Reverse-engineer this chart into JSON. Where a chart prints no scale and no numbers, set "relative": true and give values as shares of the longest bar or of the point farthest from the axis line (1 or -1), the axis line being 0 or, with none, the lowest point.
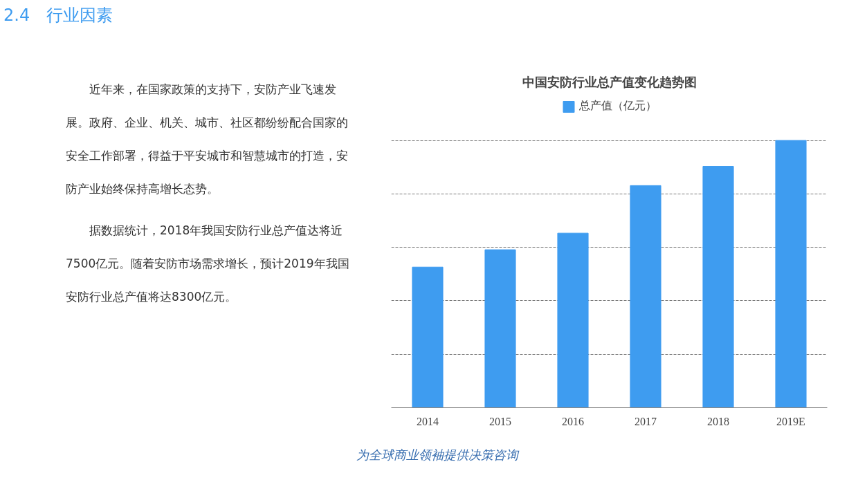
{
  "chart_data": [
    {
      "type": "other",
      "title": "2.4　行业因素",
      "annotations": [
        "近年来，在国家政策的支持下，安防产业飞速发展。政府、企业、机关、城市、社区都纷纷配合国家的安全工作部署，得益于平安城市和智慧城市的打造，安防产业始终保持高增长态势。",
        "据数据统计，2018年我国安防行业总产值达将近7500亿元。随着安防市场需求增长，预计2019年我国安防行业总产值将达8300亿元。",
        "为全球商业领袖提供决策咨询"
      ]
    },
    {
      "type": "bar",
      "title": "中国安防行业总产值变化趋势图",
      "categories": [
        "2014",
        "2015",
        "2016",
        "2017",
        "2018",
        "2019E"
      ],
      "series": [
        {
          "name": "总产值（亿元）",
          "color": "#3e9cf0",
          "values": [
            0.526,
            0.591,
            0.653,
            0.831,
            0.903,
            1
          ]
        }
      ],
      "relative": true,
      "grid": "y",
      "legend": "top"
    }
  ]
}
